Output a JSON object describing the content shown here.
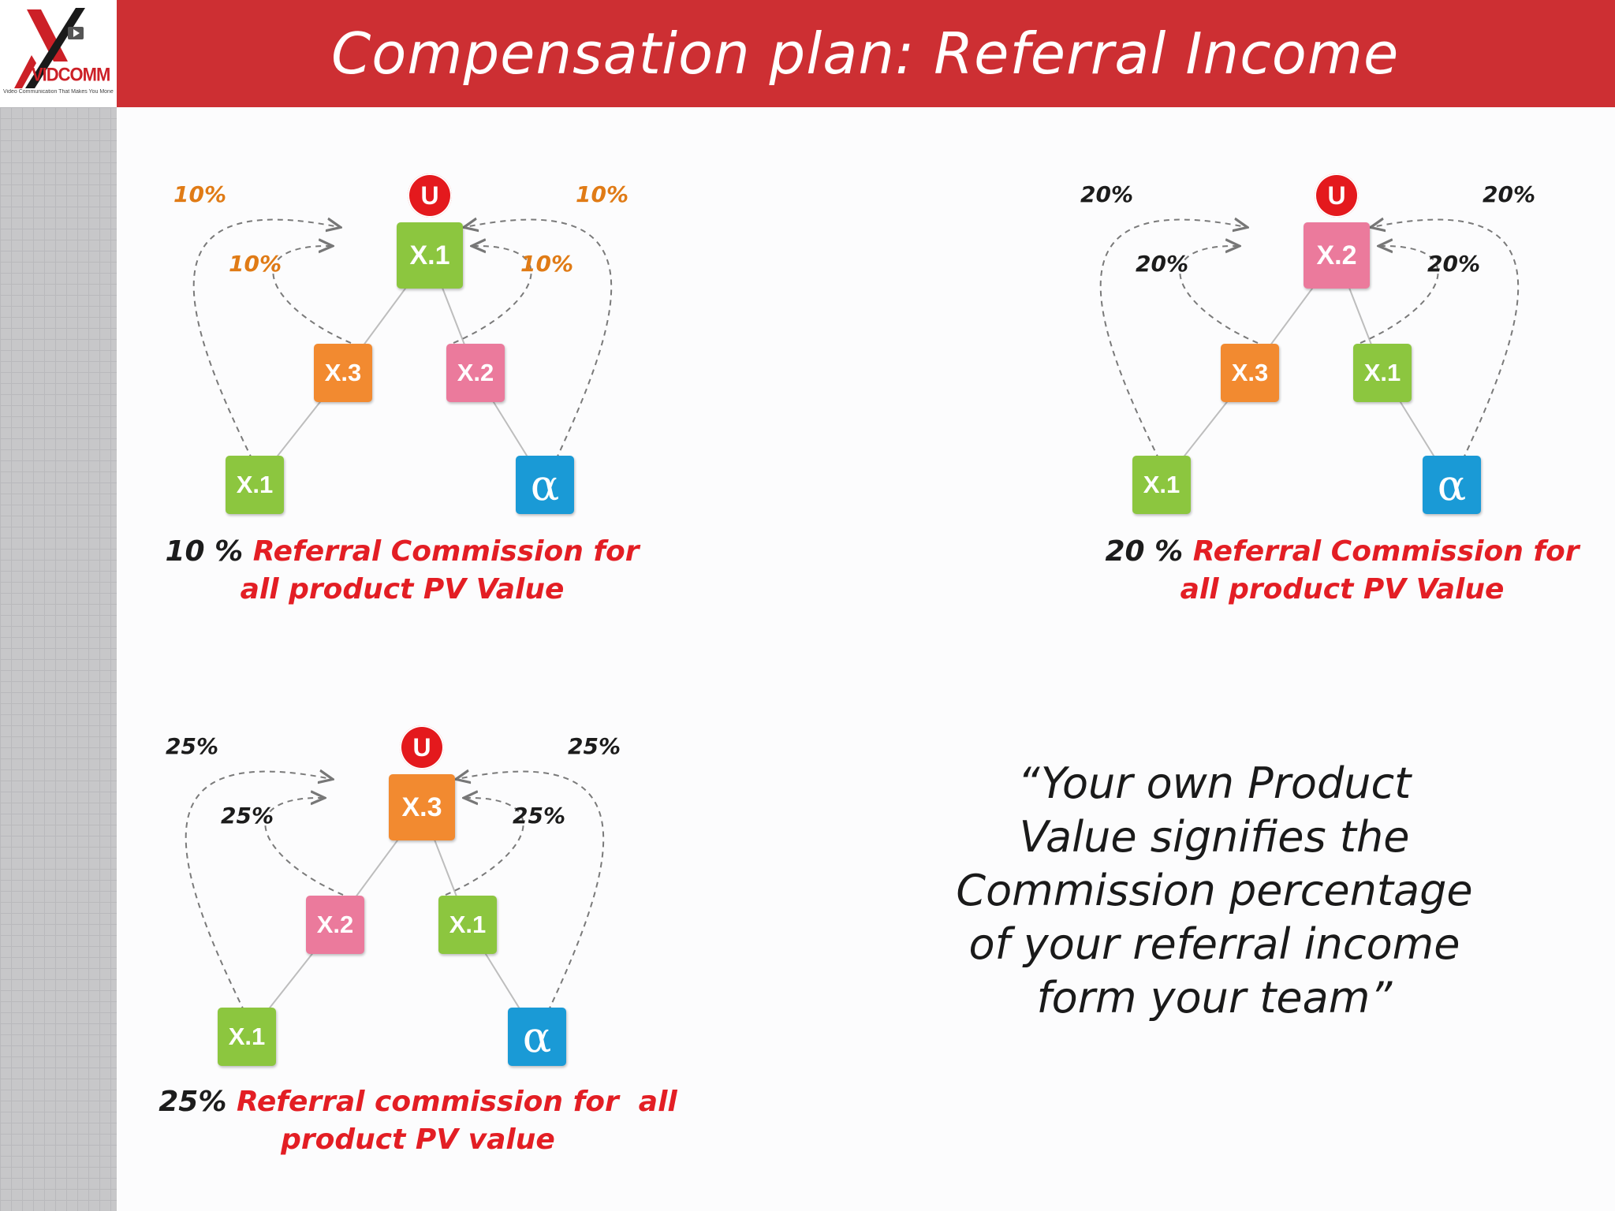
{
  "header": {
    "title": "Compensation plan: Referral Income",
    "logo": {
      "brand": "VIDCOMM",
      "tagline": "Video Communication That Makes You Money",
      "icon": "x-play-logo"
    }
  },
  "colors": {
    "header_red": "#cd2f33",
    "green": "#8cc63f",
    "orange": "#f28a30",
    "pink": "#eb7a9c",
    "blue": "#1a9ad6",
    "badge_red": "#e4191d",
    "pct_orange": "#e07b16",
    "caption_red": "#e31e24"
  },
  "diagrams": [
    {
      "top_label": "U",
      "top_node": "X.1",
      "mid_left": "X.3",
      "mid_right": "X.2",
      "bottom_left": "X.1",
      "bottom_right": "α",
      "pct_outer_left": "10%",
      "pct_outer_right": "10%",
      "pct_inner_left": "10%",
      "pct_inner_right": "10%",
      "caption_lead": "10 %",
      "caption_line1": "Referral Commission for",
      "caption_line2": "all product PV Value"
    },
    {
      "top_label": "U",
      "top_node": "X.2",
      "mid_left": "X.3",
      "mid_right": "X.1",
      "bottom_left": "X.1",
      "bottom_right": "α",
      "pct_outer_left": "20%",
      "pct_outer_right": "20%",
      "pct_inner_left": "20%",
      "pct_inner_right": "20%",
      "caption_lead": "20 %",
      "caption_line1": "Referral Commission for",
      "caption_line2": "all product PV Value"
    },
    {
      "top_label": "U",
      "top_node": "X.3",
      "mid_left": "X.2",
      "mid_right": "X.1",
      "bottom_left": "X.1",
      "bottom_right": "α",
      "pct_outer_left": "25%",
      "pct_outer_right": "25%",
      "pct_inner_left": "25%",
      "pct_inner_right": "25%",
      "caption_lead": "25%",
      "caption_line1": "Referral commission for  all",
      "caption_line2": "product PV value"
    }
  ],
  "quote": {
    "lines": [
      "“Your own Product",
      "Value signifies the",
      "Commission percentage",
      "of your referral income",
      "form your team”"
    ]
  }
}
